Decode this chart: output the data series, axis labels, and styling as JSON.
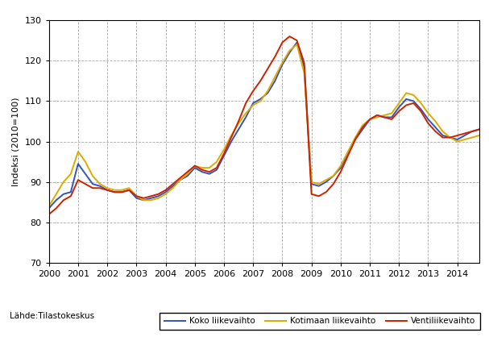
{
  "title": "",
  "ylabel": "Indeksi (2010=100)",
  "xlabel": "",
  "source_text": "Lähde:Tilastokeskus",
  "ylim": [
    70,
    130
  ],
  "yticks": [
    70,
    80,
    90,
    100,
    110,
    120,
    130
  ],
  "xlim_start": 2000.0,
  "xlim_end": 2014.75,
  "xtick_labels": [
    "2000",
    "2001",
    "2002",
    "2003",
    "2004",
    "2005",
    "2006",
    "2007",
    "2008",
    "2009",
    "2010",
    "2011",
    "2012",
    "2013",
    "2014"
  ],
  "legend_labels": [
    "Koko liikevaihto",
    "Kotimaan liikevaihto",
    "Ventiliikevaihto"
  ],
  "line_colors": [
    "#3355bb",
    "#ddaa00",
    "#cc2200"
  ],
  "background_color": "#ffffff",
  "grid_color": "#aaaaaa",
  "series": {
    "koko": [
      [
        2000.0,
        83.5
      ],
      [
        2000.25,
        85.5
      ],
      [
        2000.5,
        87.0
      ],
      [
        2000.75,
        87.5
      ],
      [
        2001.0,
        94.5
      ],
      [
        2001.25,
        92.0
      ],
      [
        2001.5,
        89.5
      ],
      [
        2001.75,
        89.0
      ],
      [
        2002.0,
        88.0
      ],
      [
        2002.25,
        87.5
      ],
      [
        2002.5,
        87.5
      ],
      [
        2002.75,
        88.0
      ],
      [
        2003.0,
        86.0
      ],
      [
        2003.25,
        85.5
      ],
      [
        2003.5,
        86.0
      ],
      [
        2003.75,
        86.5
      ],
      [
        2004.0,
        87.5
      ],
      [
        2004.25,
        89.0
      ],
      [
        2004.5,
        90.5
      ],
      [
        2004.75,
        91.5
      ],
      [
        2005.0,
        93.5
      ],
      [
        2005.25,
        92.5
      ],
      [
        2005.5,
        92.0
      ],
      [
        2005.75,
        93.0
      ],
      [
        2006.0,
        96.5
      ],
      [
        2006.25,
        100.0
      ],
      [
        2006.5,
        103.0
      ],
      [
        2006.75,
        106.0
      ],
      [
        2007.0,
        109.5
      ],
      [
        2007.25,
        110.5
      ],
      [
        2007.5,
        112.0
      ],
      [
        2007.75,
        115.0
      ],
      [
        2008.0,
        119.0
      ],
      [
        2008.25,
        122.0
      ],
      [
        2008.5,
        124.5
      ],
      [
        2008.75,
        118.5
      ],
      [
        2009.0,
        89.5
      ],
      [
        2009.25,
        89.0
      ],
      [
        2009.5,
        90.0
      ],
      [
        2009.75,
        91.5
      ],
      [
        2010.0,
        93.5
      ],
      [
        2010.25,
        97.0
      ],
      [
        2010.5,
        100.5
      ],
      [
        2010.75,
        103.0
      ],
      [
        2011.0,
        105.5
      ],
      [
        2011.25,
        106.5
      ],
      [
        2011.5,
        106.0
      ],
      [
        2011.75,
        106.0
      ],
      [
        2012.0,
        108.5
      ],
      [
        2012.25,
        110.5
      ],
      [
        2012.5,
        110.0
      ],
      [
        2012.75,
        108.0
      ],
      [
        2013.0,
        105.5
      ],
      [
        2013.25,
        103.5
      ],
      [
        2013.5,
        101.5
      ],
      [
        2013.75,
        101.0
      ],
      [
        2014.0,
        100.5
      ],
      [
        2014.25,
        101.5
      ],
      [
        2014.5,
        102.5
      ],
      [
        2014.75,
        103.0
      ]
    ],
    "kotimaan": [
      [
        2000.0,
        84.0
      ],
      [
        2000.25,
        87.0
      ],
      [
        2000.5,
        90.0
      ],
      [
        2000.75,
        92.0
      ],
      [
        2001.0,
        97.5
      ],
      [
        2001.25,
        95.0
      ],
      [
        2001.5,
        91.5
      ],
      [
        2001.75,
        89.5
      ],
      [
        2002.0,
        88.5
      ],
      [
        2002.25,
        88.0
      ],
      [
        2002.5,
        88.0
      ],
      [
        2002.75,
        88.5
      ],
      [
        2003.0,
        86.5
      ],
      [
        2003.25,
        85.5
      ],
      [
        2003.5,
        85.5
      ],
      [
        2003.75,
        86.0
      ],
      [
        2004.0,
        87.0
      ],
      [
        2004.25,
        88.5
      ],
      [
        2004.5,
        90.5
      ],
      [
        2004.75,
        92.0
      ],
      [
        2005.0,
        94.0
      ],
      [
        2005.25,
        93.5
      ],
      [
        2005.5,
        93.5
      ],
      [
        2005.75,
        95.0
      ],
      [
        2006.0,
        98.0
      ],
      [
        2006.25,
        101.5
      ],
      [
        2006.5,
        104.5
      ],
      [
        2006.75,
        107.0
      ],
      [
        2007.0,
        109.0
      ],
      [
        2007.25,
        110.0
      ],
      [
        2007.5,
        112.5
      ],
      [
        2007.75,
        116.0
      ],
      [
        2008.0,
        119.5
      ],
      [
        2008.25,
        122.5
      ],
      [
        2008.5,
        124.0
      ],
      [
        2008.75,
        117.0
      ],
      [
        2009.0,
        90.0
      ],
      [
        2009.25,
        89.5
      ],
      [
        2009.5,
        90.5
      ],
      [
        2009.75,
        91.5
      ],
      [
        2010.0,
        94.0
      ],
      [
        2010.25,
        97.5
      ],
      [
        2010.5,
        101.0
      ],
      [
        2010.75,
        104.0
      ],
      [
        2011.0,
        105.5
      ],
      [
        2011.25,
        106.0
      ],
      [
        2011.5,
        106.5
      ],
      [
        2011.75,
        107.0
      ],
      [
        2012.0,
        109.5
      ],
      [
        2012.25,
        112.0
      ],
      [
        2012.5,
        111.5
      ],
      [
        2012.75,
        109.5
      ],
      [
        2013.0,
        107.0
      ],
      [
        2013.25,
        105.0
      ],
      [
        2013.5,
        102.5
      ],
      [
        2013.75,
        101.0
      ],
      [
        2014.0,
        100.0
      ],
      [
        2014.25,
        100.5
      ],
      [
        2014.5,
        101.0
      ],
      [
        2014.75,
        101.5
      ]
    ],
    "vienti": [
      [
        2000.0,
        82.0
      ],
      [
        2000.25,
        83.5
      ],
      [
        2000.5,
        85.5
      ],
      [
        2000.75,
        86.5
      ],
      [
        2001.0,
        90.5
      ],
      [
        2001.25,
        89.5
      ],
      [
        2001.5,
        88.5
      ],
      [
        2001.75,
        88.5
      ],
      [
        2002.0,
        88.0
      ],
      [
        2002.25,
        87.5
      ],
      [
        2002.5,
        87.5
      ],
      [
        2002.75,
        88.0
      ],
      [
        2003.0,
        86.5
      ],
      [
        2003.25,
        86.0
      ],
      [
        2003.5,
        86.5
      ],
      [
        2003.75,
        87.0
      ],
      [
        2004.0,
        88.0
      ],
      [
        2004.25,
        89.5
      ],
      [
        2004.5,
        91.0
      ],
      [
        2004.75,
        92.5
      ],
      [
        2005.0,
        94.0
      ],
      [
        2005.25,
        93.0
      ],
      [
        2005.5,
        92.5
      ],
      [
        2005.75,
        93.5
      ],
      [
        2006.0,
        97.0
      ],
      [
        2006.25,
        101.0
      ],
      [
        2006.5,
        105.0
      ],
      [
        2006.75,
        109.5
      ],
      [
        2007.0,
        112.5
      ],
      [
        2007.25,
        115.0
      ],
      [
        2007.5,
        118.0
      ],
      [
        2007.75,
        121.0
      ],
      [
        2008.0,
        124.5
      ],
      [
        2008.25,
        126.0
      ],
      [
        2008.5,
        125.0
      ],
      [
        2008.75,
        119.5
      ],
      [
        2009.0,
        87.0
      ],
      [
        2009.25,
        86.5
      ],
      [
        2009.5,
        87.5
      ],
      [
        2009.75,
        89.5
      ],
      [
        2010.0,
        92.5
      ],
      [
        2010.25,
        96.5
      ],
      [
        2010.5,
        100.5
      ],
      [
        2010.75,
        103.5
      ],
      [
        2011.0,
        105.5
      ],
      [
        2011.25,
        106.5
      ],
      [
        2011.5,
        106.0
      ],
      [
        2011.75,
        105.5
      ],
      [
        2012.0,
        107.5
      ],
      [
        2012.25,
        109.0
      ],
      [
        2012.5,
        109.5
      ],
      [
        2012.75,
        107.5
      ],
      [
        2013.0,
        104.5
      ],
      [
        2013.25,
        102.5
      ],
      [
        2013.5,
        101.0
      ],
      [
        2013.75,
        101.0
      ],
      [
        2014.0,
        101.5
      ],
      [
        2014.25,
        102.0
      ],
      [
        2014.5,
        102.5
      ],
      [
        2014.75,
        103.0
      ]
    ]
  }
}
